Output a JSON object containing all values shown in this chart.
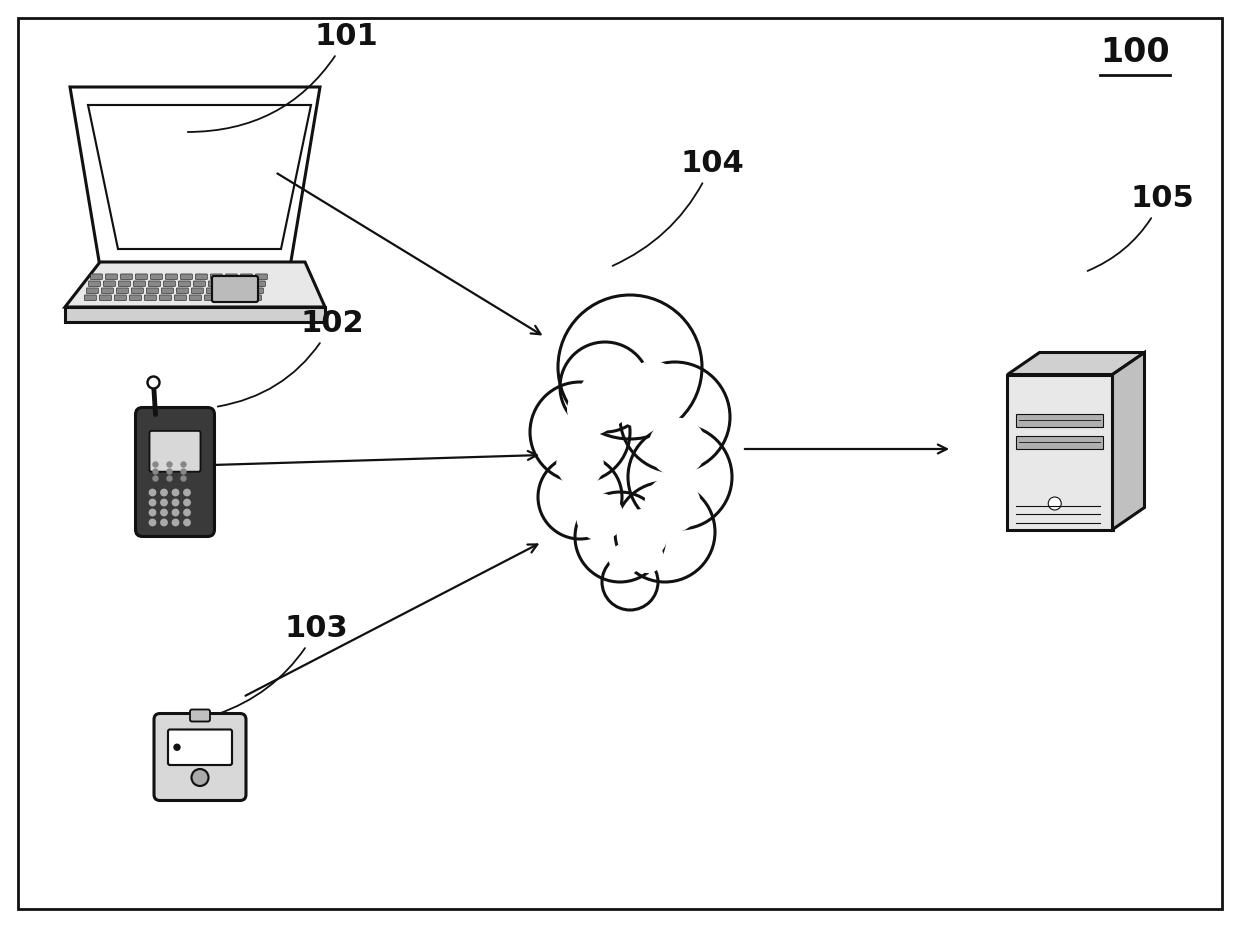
{
  "background_color": "#ffffff",
  "border_color": "#000000",
  "label_100": "100",
  "label_101": "101",
  "label_102": "102",
  "label_103": "103",
  "label_104": "104",
  "label_105": "105",
  "fig_width": 12.4,
  "fig_height": 9.27,
  "dpi": 100,
  "lw_main": 2.2,
  "lw_thin": 1.2,
  "dark": "#111111"
}
